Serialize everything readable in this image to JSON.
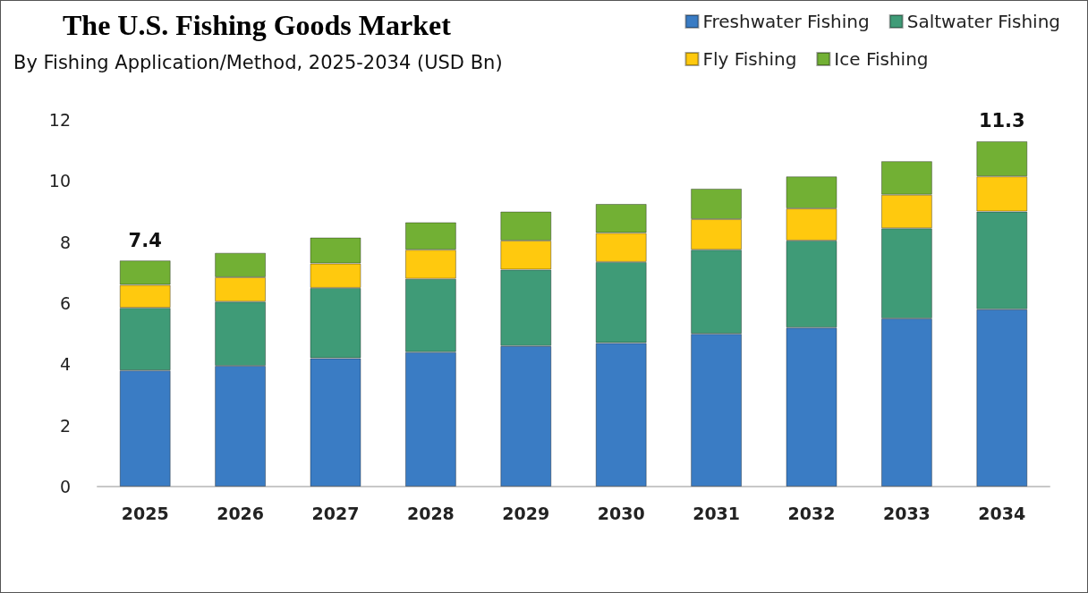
{
  "chart_data": {
    "type": "bar",
    "title": "The U.S. Fishing Goods Market",
    "subtitle": "By Fishing Application/Method, 2025-2034 (USD Bn)",
    "categories": [
      "2025",
      "2026",
      "2027",
      "2028",
      "2029",
      "2030",
      "2031",
      "2032",
      "2033",
      "2034"
    ],
    "series": [
      {
        "name": "Freshwater Fishing",
        "color": "#3a7cc4",
        "values": [
          3.8,
          3.95,
          4.2,
          4.4,
          4.6,
          4.7,
          5.0,
          5.2,
          5.5,
          5.8
        ]
      },
      {
        "name": "Saltwater Fishing",
        "color": "#3f9b77",
        "values": [
          2.05,
          2.1,
          2.3,
          2.4,
          2.5,
          2.65,
          2.75,
          2.85,
          2.95,
          3.2
        ]
      },
      {
        "name": "Fly Fishing",
        "color": "#ffc90e",
        "values": [
          0.75,
          0.8,
          0.8,
          0.95,
          0.95,
          0.95,
          1.0,
          1.05,
          1.1,
          1.15
        ]
      },
      {
        "name": "Ice Fishing",
        "color": "#72b034",
        "values": [
          0.8,
          0.8,
          0.85,
          0.9,
          0.95,
          0.95,
          1.0,
          1.05,
          1.1,
          1.15
        ]
      }
    ],
    "stacked": true,
    "totals": [
      "7.4",
      null,
      null,
      null,
      null,
      null,
      null,
      null,
      null,
      "11.3"
    ],
    "ylim": [
      0,
      12
    ],
    "yticks": [
      0,
      2,
      4,
      6,
      8,
      10,
      12
    ],
    "grid": false,
    "legend": "top right"
  }
}
